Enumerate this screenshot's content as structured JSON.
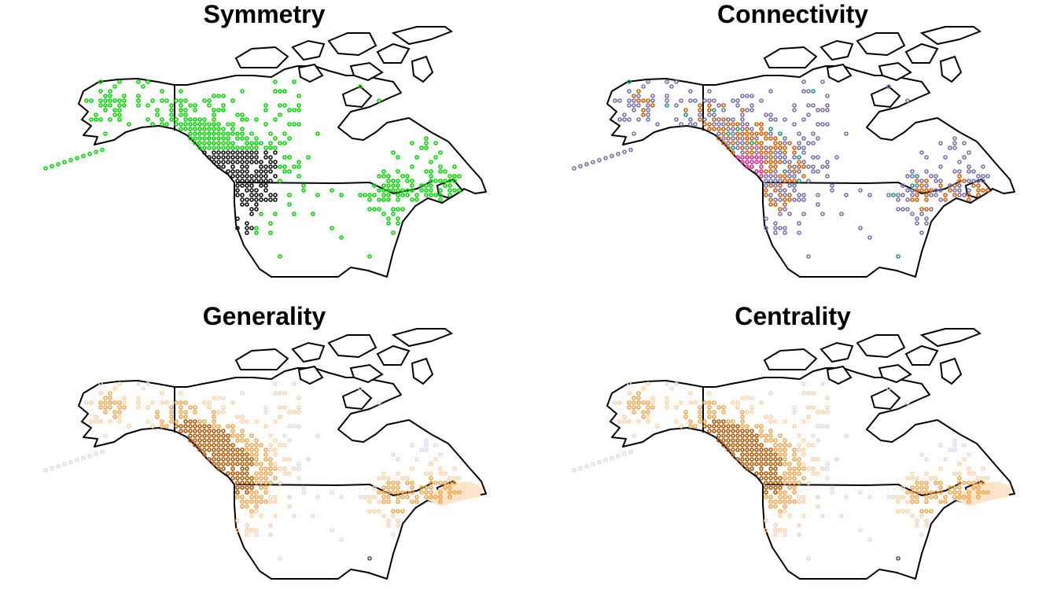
{
  "panels": [
    {
      "title": "Symmetry",
      "scheme": "symmetry"
    },
    {
      "title": "Connectivity",
      "scheme": "connectivity"
    },
    {
      "title": "Generality",
      "scheme": "heat"
    },
    {
      "title": "Centrality",
      "scheme": "heat"
    }
  ],
  "colors": {
    "outline": "#000000",
    "green": "#00dd00",
    "black": "#111111",
    "purple": "#7570b3",
    "orange": "#d95f02",
    "magenta": "#e7298a",
    "teal": "#1b9e77",
    "lightOrange": "#fdd0a2",
    "midOrange": "#f59b3a",
    "darkOrange": "#b35806",
    "lightPurple": "#d8d5ea",
    "darkPurple": "#54278f",
    "peachFill": "#fde3c8"
  }
}
